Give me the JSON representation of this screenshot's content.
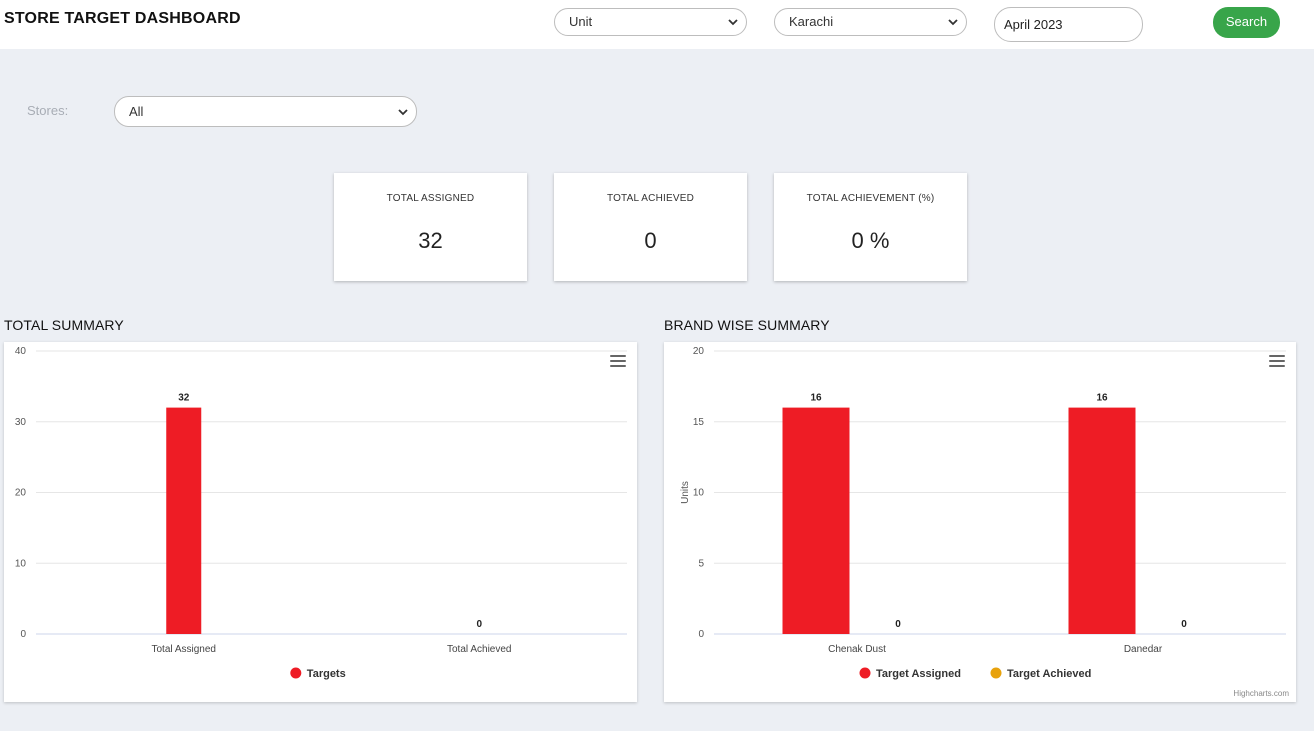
{
  "header": {
    "title": "STORE TARGET DASHBOARD",
    "unit_select": "Unit",
    "city_select": "Karachi",
    "month_value": "April 2023",
    "search_label": "Search"
  },
  "filters": {
    "stores_label": "Stores:",
    "stores_value": "All"
  },
  "cards": [
    {
      "label": "TOTAL ASSIGNED",
      "value": "32"
    },
    {
      "label": "TOTAL ACHIEVED",
      "value": "0"
    },
    {
      "label": "TOTAL ACHIEVEMENT (%)",
      "value": "0 %"
    }
  ],
  "sections": {
    "total_summary": "TOTAL SUMMARY",
    "brand_summary": "BRAND WISE SUMMARY"
  },
  "credit": "Highcharts.com",
  "colors": {
    "accent_red": "#ee1c25",
    "accent_orange": "#e8a20c",
    "search_green": "#38a54a"
  },
  "chart_data": [
    {
      "type": "bar",
      "categories": [
        "Total Assigned",
        "Total Achieved"
      ],
      "series": [
        {
          "name": "Targets",
          "color": "#ee1c25",
          "values": [
            32,
            0
          ]
        }
      ],
      "title": "",
      "ylabel": "",
      "ylim": [
        0,
        40
      ],
      "yticks": [
        0,
        10,
        20,
        30,
        40
      ],
      "legend": "bottom-center",
      "grid": true
    },
    {
      "type": "bar",
      "categories": [
        "Chenak Dust",
        "Danedar"
      ],
      "series": [
        {
          "name": "Target Assigned",
          "color": "#ee1c25",
          "values": [
            16,
            16
          ]
        },
        {
          "name": "Target Achieved",
          "color": "#e8a20c",
          "values": [
            0,
            0
          ]
        }
      ],
      "title": "",
      "ylabel": "Units",
      "ylim": [
        0,
        20
      ],
      "yticks": [
        0,
        5,
        10,
        15,
        20
      ],
      "legend": "bottom-center",
      "grid": true
    }
  ]
}
